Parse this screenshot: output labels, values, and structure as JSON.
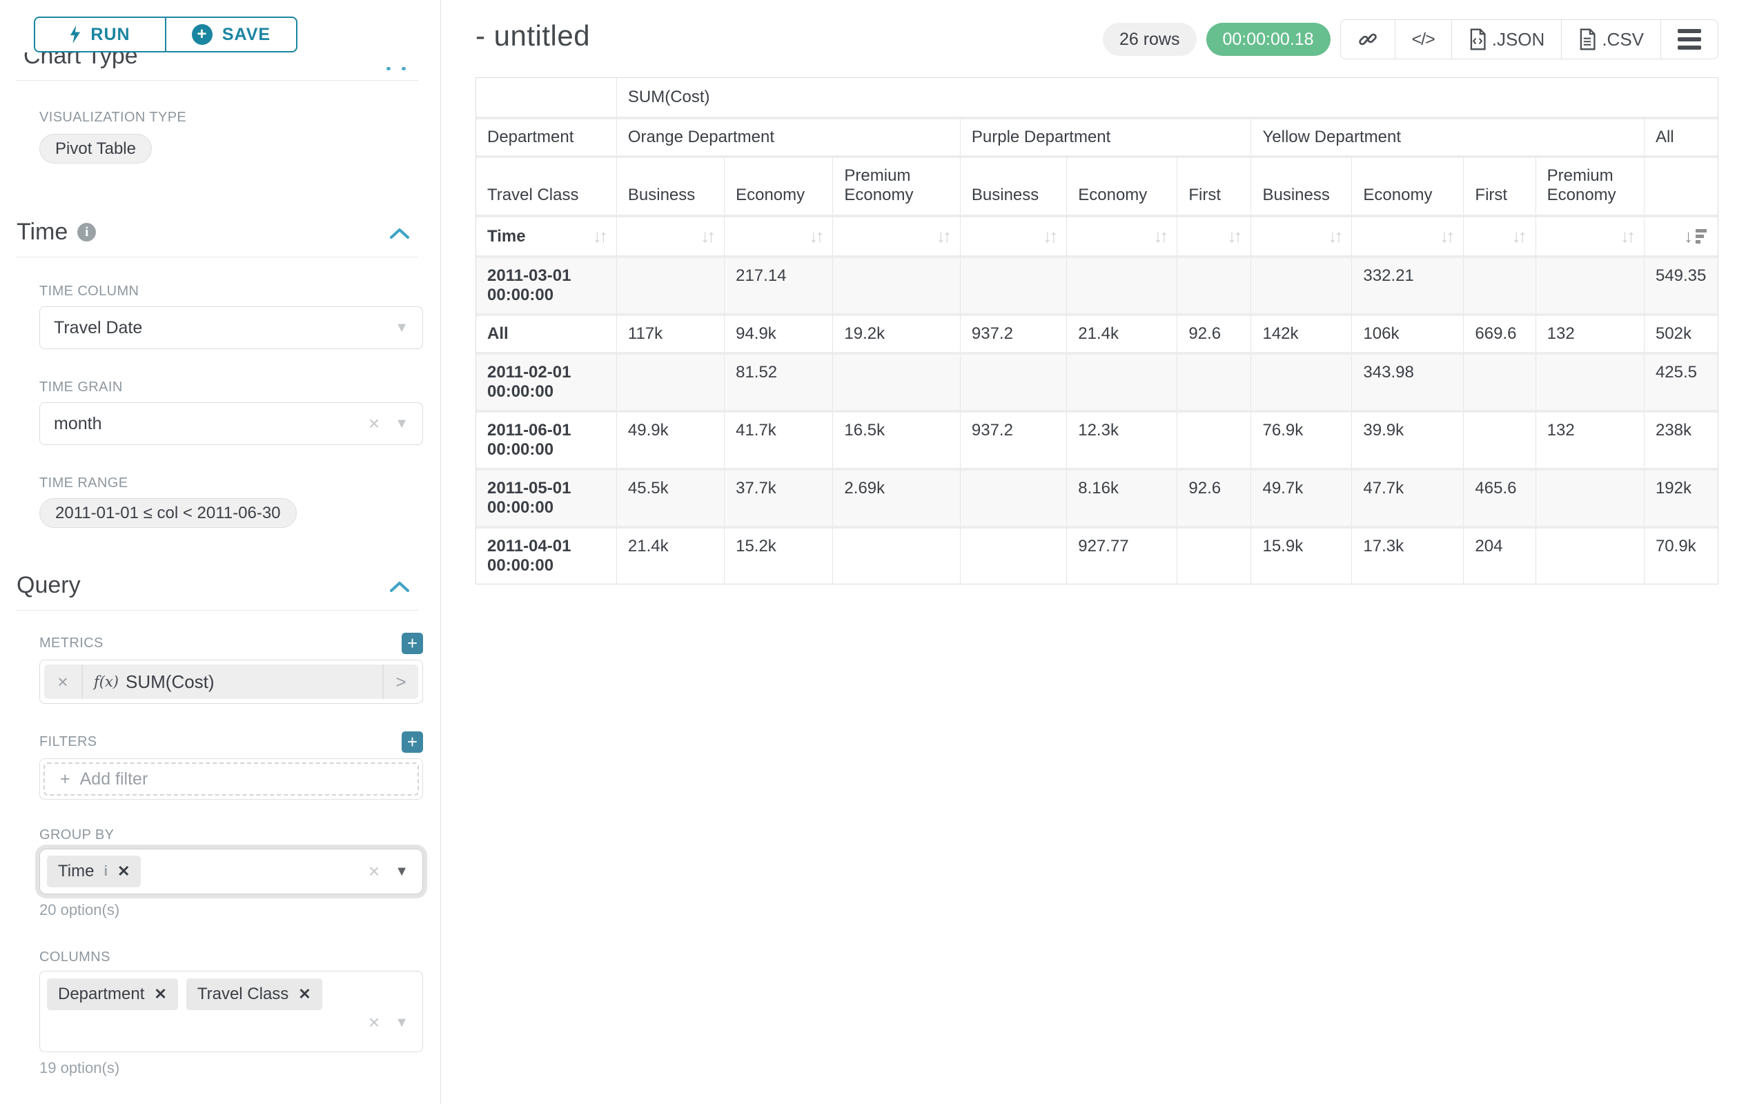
{
  "sidebar": {
    "run_label": "RUN",
    "save_label": "SAVE",
    "chart_type_heading": "Chart Type",
    "viz_type_label": "VISUALIZATION TYPE",
    "viz_type_value": "Pivot Table",
    "time_section": "Time",
    "time_info_icon": "i",
    "time_column_label": "TIME COLUMN",
    "time_column_value": "Travel Date",
    "time_grain_label": "TIME GRAIN",
    "time_grain_value": "month",
    "time_range_label": "TIME RANGE",
    "time_range_value": "2011-01-01 ≤ col < 2011-06-30",
    "query_section": "Query",
    "metrics_label": "METRICS",
    "metric_fx": "f(x)",
    "metric_value": "SUM(Cost)",
    "filters_label": "FILTERS",
    "add_filter_label": "Add filter",
    "group_by_label": "GROUP BY",
    "group_by_chip": "Time",
    "group_by_chip_info": "i",
    "group_by_options": "20 option(s)",
    "columns_label": "COLUMNS",
    "columns_chips": [
      "Department",
      "Travel Class"
    ],
    "columns_options": "19 option(s)"
  },
  "header": {
    "title": "- untitled",
    "row_count": "26 rows",
    "timer": "00:00:00.18",
    "export_json_label": ".JSON",
    "export_csv_label": ".CSV",
    "code_label": "</>"
  },
  "chart_data": {
    "type": "table",
    "metric_header": "SUM(Cost)",
    "corner_labels": {
      "department": "Department",
      "travel_class": "Travel Class",
      "time": "Time"
    },
    "department_groups": [
      {
        "name": "Orange Department",
        "span": 3
      },
      {
        "name": "Purple Department",
        "span": 3
      },
      {
        "name": "Yellow Department",
        "span": 4
      },
      {
        "name": "All",
        "span": 1
      }
    ],
    "travel_classes": [
      "Business",
      "Economy",
      "Premium Economy",
      "Business",
      "Economy",
      "First",
      "Business",
      "Economy",
      "First",
      "Premium Economy",
      ""
    ],
    "rows": [
      {
        "label": "2011-03-01 00:00:00",
        "values": [
          "",
          "217.14",
          "",
          "",
          "",
          "",
          "",
          "332.21",
          "",
          "",
          "549.35"
        ]
      },
      {
        "label": "All",
        "values": [
          "117k",
          "94.9k",
          "19.2k",
          "937.2",
          "21.4k",
          "92.6",
          "142k",
          "106k",
          "669.6",
          "132",
          "502k"
        ]
      },
      {
        "label": "2011-02-01 00:00:00",
        "values": [
          "",
          "81.52",
          "",
          "",
          "",
          "",
          "",
          "343.98",
          "",
          "",
          "425.5"
        ]
      },
      {
        "label": "2011-06-01 00:00:00",
        "values": [
          "49.9k",
          "41.7k",
          "16.5k",
          "937.2",
          "12.3k",
          "",
          "76.9k",
          "39.9k",
          "",
          "132",
          "238k"
        ]
      },
      {
        "label": "2011-05-01 00:00:00",
        "values": [
          "45.5k",
          "37.7k",
          "2.69k",
          "",
          "8.16k",
          "92.6",
          "49.7k",
          "47.7k",
          "465.6",
          "",
          "192k"
        ]
      },
      {
        "label": "2011-04-01 00:00:00",
        "values": [
          "21.4k",
          "15.2k",
          "",
          "",
          "927.77",
          "",
          "15.9k",
          "17.3k",
          "204",
          "",
          "70.9k"
        ]
      }
    ]
  },
  "colors": {
    "accent_teal": "#1a85a0",
    "chevron_blue": "#3fa3c6",
    "plus_button": "#3e87a2",
    "timer_green": "#67be8e",
    "label_gray": "#8e979e"
  }
}
